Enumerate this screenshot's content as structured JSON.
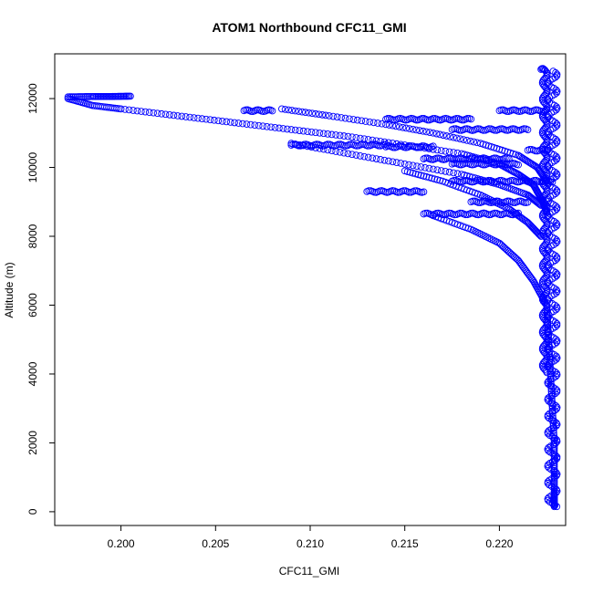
{
  "chart_data": {
    "type": "scatter",
    "title": "ATOM1 Northbound CFC11_GMI",
    "xlabel": "CFC11_GMI",
    "ylabel": "Altitude (m)",
    "xlim": [
      0.1965,
      0.2235
    ],
    "ylim": [
      -400,
      13300
    ],
    "x_ticks": [
      0.2,
      0.205,
      0.21,
      0.215,
      0.22
    ],
    "x_tick_labels": [
      "0.200",
      "0.205",
      "0.210",
      "0.215",
      "0.220"
    ],
    "y_ticks": [
      0,
      2000,
      4000,
      6000,
      8000,
      10000,
      12000
    ],
    "y_tick_labels": [
      "0",
      "2000",
      "4000",
      "6000",
      "8000",
      "10000",
      "12000"
    ],
    "grid": false,
    "legend": "none",
    "marker": "open-circle",
    "color": "#0000ff",
    "series": [
      {
        "profile": "main-dive",
        "x": [
          0.1972,
          0.1985,
          0.2,
          0.203,
          0.206,
          0.209,
          0.212,
          0.215,
          0.218,
          0.22,
          0.221,
          0.2218,
          0.2222,
          0.2225
        ],
        "y": [
          12000,
          11800,
          11700,
          11500,
          11300,
          11100,
          10900,
          10650,
          10400,
          10100,
          9800,
          9500,
          9100,
          8700
        ]
      },
      {
        "profile": "upper-flat",
        "x": [
          0.1972,
          0.1985,
          0.1995,
          0.2005
        ],
        "y": [
          12050,
          12060,
          12060,
          12070
        ]
      },
      {
        "profile": "second-descent",
        "x": [
          0.2085,
          0.211,
          0.214,
          0.2165,
          0.219,
          0.221,
          0.222,
          0.2225
        ],
        "y": [
          11700,
          11500,
          11250,
          11000,
          10700,
          10350,
          10000,
          9600
        ]
      },
      {
        "profile": "third-descent",
        "x": [
          0.209,
          0.212,
          0.215,
          0.218,
          0.22,
          0.2215,
          0.2222
        ],
        "y": [
          10700,
          10400,
          10100,
          9800,
          9500,
          9200,
          8900
        ]
      },
      {
        "profile": "fourth-descent",
        "x": [
          0.215,
          0.217,
          0.219,
          0.2205,
          0.2215,
          0.2222
        ],
        "y": [
          9900,
          9600,
          9200,
          8800,
          8400,
          8000
        ]
      },
      {
        "profile": "lower-descent",
        "x": [
          0.2165,
          0.2185,
          0.22,
          0.221,
          0.2218,
          0.2224
        ],
        "y": [
          8600,
          8200,
          7800,
          7300,
          6700,
          6100
        ]
      },
      {
        "profile": "bottom-column",
        "x": [
          0.2225,
          0.2226,
          0.2227,
          0.2228,
          0.2229,
          0.2229,
          0.2229,
          0.2229
        ],
        "y": [
          6000,
          5000,
          4000,
          3000,
          2000,
          1200,
          500,
          150
        ]
      }
    ],
    "flat_segments": [
      {
        "x_start": 0.2065,
        "x_end": 0.208,
        "y": 11650
      },
      {
        "x_start": 0.214,
        "x_end": 0.2185,
        "y": 11400
      },
      {
        "x_start": 0.2175,
        "x_end": 0.2215,
        "y": 11100
      },
      {
        "x_start": 0.209,
        "x_end": 0.214,
        "y": 10650
      },
      {
        "x_start": 0.214,
        "x_end": 0.2165,
        "y": 10600
      },
      {
        "x_start": 0.216,
        "x_end": 0.2205,
        "y": 10250
      },
      {
        "x_start": 0.2175,
        "x_end": 0.221,
        "y": 10100
      },
      {
        "x_start": 0.213,
        "x_end": 0.216,
        "y": 9300
      },
      {
        "x_start": 0.2175,
        "x_end": 0.2228,
        "y": 9600
      },
      {
        "x_start": 0.216,
        "x_end": 0.221,
        "y": 8650
      },
      {
        "x_start": 0.2185,
        "x_end": 0.2215,
        "y": 9000
      },
      {
        "x_start": 0.22,
        "x_end": 0.2225,
        "y": 11650
      },
      {
        "x_start": 0.2215,
        "x_end": 0.2225,
        "y": 10500
      },
      {
        "x_start": 0.2222,
        "x_end": 0.2224,
        "y": 12850
      }
    ]
  }
}
